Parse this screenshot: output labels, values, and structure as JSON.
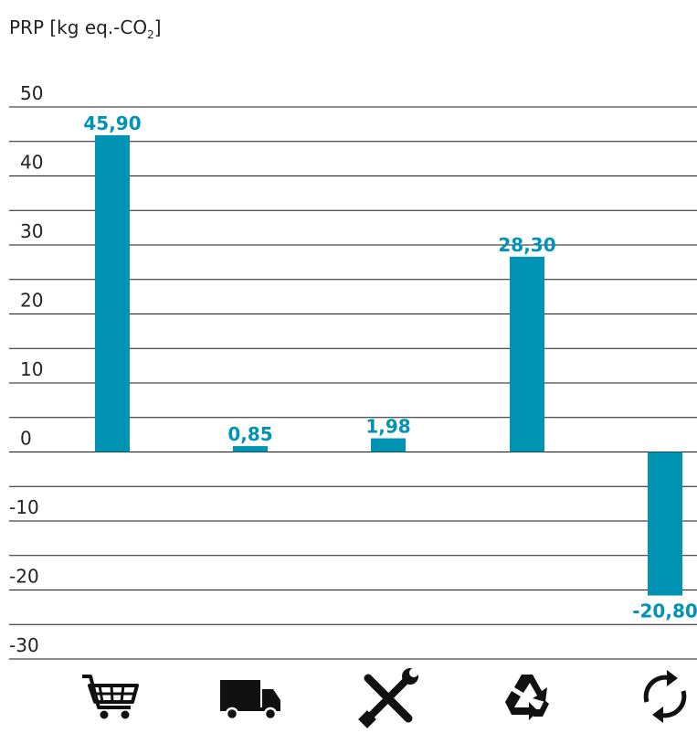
{
  "chart_data": {
    "type": "bar",
    "ylabel_main": "PRP [kg eq.-CO",
    "ylabel_sub": "2",
    "ylabel_end": "]",
    "ylim": [
      -30,
      50
    ],
    "yticks": [
      50,
      40,
      30,
      20,
      10,
      0,
      -10,
      -20,
      -30
    ],
    "categories": [
      "shopping-cart",
      "truck",
      "tools",
      "recycle",
      "cycle"
    ],
    "values": [
      45.9,
      0.85,
      1.98,
      28.3,
      -20.8
    ],
    "value_labels": [
      "45,90",
      "0,85",
      "1,98",
      "28,30",
      "-20,80"
    ],
    "bar_color": "#0093b3",
    "grid": true,
    "legend": "none"
  }
}
